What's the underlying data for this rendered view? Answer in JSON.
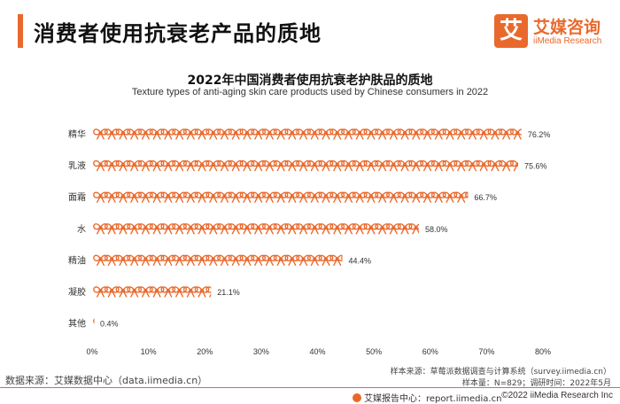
{
  "page_title": "消费者使用抗衰老产品的质地",
  "logo": {
    "icon_text": "艾",
    "cn": "艾媒咨询",
    "en": "iiMedia Research",
    "brand_color": "#e9692c"
  },
  "chart_data": {
    "type": "bar",
    "mark": "bow-pictogram",
    "title": "2022年中国消费者使用抗衰老护肤品的质地",
    "subtitle": "Texture types of anti-aging skin care products used by Chinese consumers in 2022",
    "categories": [
      "精华",
      "乳液",
      "面霜",
      "水",
      "精油",
      "凝胶",
      "其他"
    ],
    "values": [
      76.2,
      75.6,
      66.7,
      58.0,
      44.4,
      21.1,
      0.4
    ],
    "value_labels": [
      "76.2%",
      "75.6%",
      "66.7%",
      "58.0%",
      "44.4%",
      "21.1%",
      "0.4%"
    ],
    "xlim": [
      0,
      80
    ],
    "x_ticks": [
      "0%",
      "10%",
      "20%",
      "30%",
      "40%",
      "50%",
      "60%",
      "70%",
      "80%"
    ],
    "grid": false,
    "color": "#e9692c"
  },
  "footer": {
    "source_left": "数据来源：艾媒数据中心（data.iimedia.cn）",
    "sample_source": "样本来源：草莓派数据调查与计算系统（survey.iimedia.cn）",
    "sample_size": "样本量：N=829；调研时间：2022年5月",
    "report_site": "艾媒报告中心：report.iimedia.cn",
    "copyright": "©2022  iiMedia Research  Inc"
  }
}
